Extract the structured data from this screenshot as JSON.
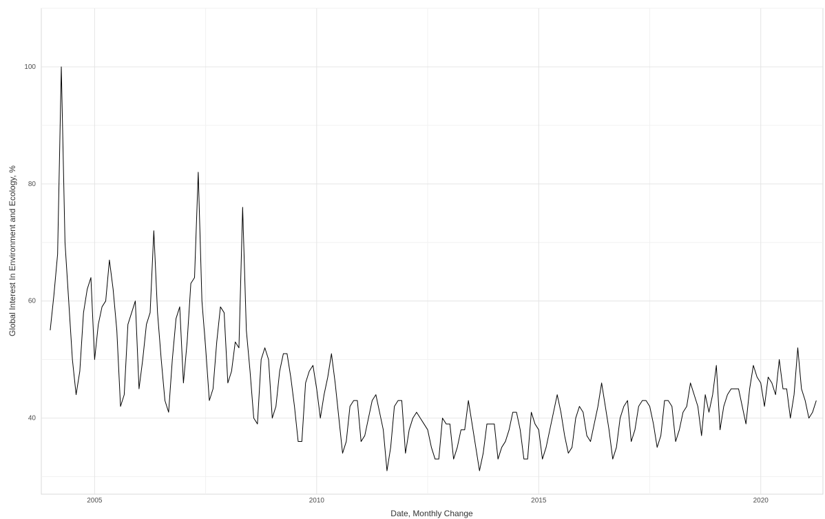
{
  "chart_data": {
    "type": "line",
    "title": "",
    "xlabel": "Date, Monthly Change",
    "ylabel": "Global Interest In Environment and Ecology, %",
    "xlim": [
      2003.8,
      2021.4
    ],
    "ylim": [
      27,
      110
    ],
    "grid": true,
    "legend": "none",
    "line_color": "#000000",
    "x_ticks": [
      {
        "value": 2005,
        "label": "2005"
      },
      {
        "value": 2010,
        "label": "2010"
      },
      {
        "value": 2015,
        "label": "2015"
      },
      {
        "value": 2020,
        "label": "2020"
      }
    ],
    "y_ticks": [
      {
        "value": 40,
        "label": "40"
      },
      {
        "value": 60,
        "label": "60"
      },
      {
        "value": 80,
        "label": "80"
      },
      {
        "value": 100,
        "label": "100"
      }
    ],
    "series": [
      {
        "start": "2004-01",
        "frequency": "monthly",
        "values": [
          55,
          61,
          68,
          100,
          70,
          60,
          50,
          44,
          48,
          58,
          62,
          64,
          50,
          56,
          59,
          60,
          67,
          62,
          55,
          42,
          44,
          56,
          58,
          60,
          45,
          50,
          56,
          58,
          72,
          58,
          50,
          43,
          41,
          50,
          57,
          59,
          46,
          53,
          63,
          64,
          82,
          60,
          52,
          43,
          45,
          53,
          59,
          58,
          46,
          48,
          53,
          52,
          76,
          55,
          48,
          40,
          39,
          50,
          52,
          50,
          40,
          42,
          48,
          51,
          51,
          47,
          42,
          36,
          36,
          46,
          48,
          49,
          45,
          40,
          44,
          47,
          51,
          46,
          40,
          34,
          36,
          42,
          43,
          43,
          36,
          37,
          40,
          43,
          44,
          41,
          38,
          31,
          35,
          42,
          43,
          43,
          34,
          38,
          40,
          41,
          40,
          39,
          38,
          35,
          33,
          33,
          40,
          39,
          39,
          33,
          35,
          38,
          38,
          43,
          39,
          35,
          31,
          34,
          39,
          39,
          39,
          33,
          35,
          36,
          38,
          41,
          41,
          38,
          33,
          33,
          41,
          39,
          38,
          33,
          35,
          38,
          41,
          44,
          41,
          37,
          34,
          35,
          40,
          42,
          41,
          37,
          36,
          39,
          42,
          46,
          42,
          38,
          33,
          35,
          40,
          42,
          43,
          36,
          38,
          42,
          43,
          43,
          42,
          39,
          35,
          37,
          43,
          43,
          42,
          36,
          38,
          41,
          42,
          46,
          44,
          42,
          37,
          44,
          41,
          44,
          49,
          38,
          42,
          44,
          45,
          45,
          45,
          42,
          39,
          45,
          49,
          47,
          46,
          42,
          47,
          46,
          44,
          50,
          45,
          45,
          40,
          44,
          52,
          45,
          43,
          40,
          41,
          43
        ]
      }
    ]
  }
}
